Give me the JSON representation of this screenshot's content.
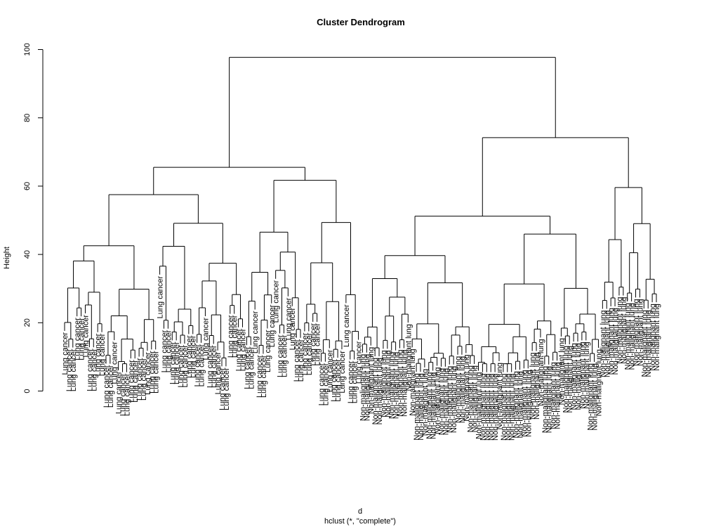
{
  "chart_data": {
    "type": "dendrogram",
    "title": "Cluster Dendrogram",
    "ylabel": "Height",
    "xlabel": "d",
    "sublabel": "hclust (*, \"complete\")",
    "ylim": [
      0,
      100
    ],
    "yticks": [
      0,
      20,
      40,
      60,
      80,
      100
    ],
    "clusters": [
      {
        "name": "Lung cancer",
        "leaf_label": "Lung cancer",
        "leaf_count": 72,
        "merge_height": 65.5,
        "subclusters": [
          {
            "merge_height": 57.5,
            "leaf_count": 44
          },
          {
            "merge_height": 61.7,
            "leaf_count": 28
          }
        ]
      },
      {
        "name": "Non-malignant lung",
        "leaf_label": "Non-malignant lung",
        "leaf_count": 72,
        "merge_height": 74.2,
        "subclusters": [
          {
            "merge_height": 51.2,
            "leaf_count": 58
          },
          {
            "merge_height": 59.6,
            "leaf_count": 14
          }
        ]
      }
    ],
    "root_height": 97.7
  }
}
